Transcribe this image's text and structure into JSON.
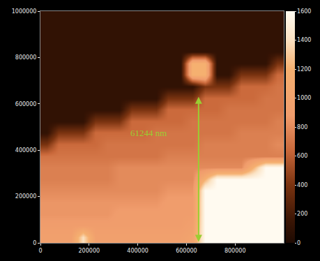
{
  "chart_data": {
    "type": "heatmap",
    "x": [
      25000,
      75000,
      125000,
      175000,
      225000,
      275000,
      325000,
      375000,
      425000,
      475000,
      525000,
      575000,
      625000,
      675000,
      725000,
      775000,
      825000,
      875000,
      925000,
      975000
    ],
    "y": [
      25000,
      75000,
      125000,
      175000,
      225000,
      275000,
      325000,
      375000,
      425000,
      475000,
      525000,
      575000,
      625000,
      675000,
      725000,
      775000,
      825000,
      875000,
      925000,
      975000
    ],
    "z": [
      [
        950,
        950,
        950,
        1400,
        950,
        950,
        950,
        950,
        950,
        950,
        950,
        950,
        1000,
        1600,
        1600,
        1600,
        1600,
        1600,
        1600,
        1600
      ],
      [
        900,
        900,
        900,
        900,
        900,
        900,
        900,
        900,
        900,
        900,
        900,
        900,
        950,
        1600,
        1600,
        1600,
        1600,
        1600,
        1600,
        1600
      ],
      [
        850,
        850,
        850,
        850,
        850,
        850,
        900,
        900,
        900,
        900,
        900,
        900,
        900,
        1600,
        1600,
        1600,
        1600,
        1600,
        1600,
        1600
      ],
      [
        850,
        850,
        850,
        850,
        850,
        850,
        850,
        850,
        850,
        850,
        900,
        900,
        900,
        1600,
        1600,
        1600,
        1600,
        1600,
        1600,
        1600
      ],
      [
        800,
        800,
        800,
        800,
        800,
        800,
        800,
        800,
        800,
        800,
        850,
        850,
        850,
        1600,
        1600,
        1600,
        1600,
        1600,
        1600,
        1600
      ],
      [
        750,
        750,
        750,
        750,
        750,
        750,
        800,
        800,
        800,
        800,
        800,
        800,
        800,
        1200,
        1600,
        1600,
        1600,
        1600,
        1600,
        1600
      ],
      [
        750,
        750,
        750,
        750,
        750,
        750,
        800,
        800,
        800,
        800,
        800,
        800,
        800,
        800,
        800,
        800,
        800,
        1200,
        1600,
        1600
      ],
      [
        700,
        700,
        700,
        700,
        700,
        700,
        700,
        700,
        700,
        700,
        750,
        750,
        750,
        750,
        750,
        750,
        750,
        750,
        750,
        750
      ],
      [
        400,
        650,
        650,
        650,
        650,
        700,
        700,
        700,
        700,
        700,
        700,
        700,
        700,
        750,
        750,
        750,
        750,
        750,
        750,
        800
      ],
      [
        100,
        400,
        400,
        400,
        650,
        650,
        650,
        650,
        650,
        700,
        700,
        700,
        700,
        700,
        700,
        700,
        750,
        750,
        750,
        750
      ],
      [
        100,
        100,
        100,
        100,
        400,
        400,
        400,
        650,
        650,
        650,
        650,
        650,
        700,
        700,
        700,
        700,
        700,
        700,
        700,
        750
      ],
      [
        100,
        100,
        100,
        100,
        100,
        100,
        100,
        400,
        400,
        400,
        650,
        650,
        650,
        650,
        650,
        700,
        700,
        700,
        700,
        700
      ],
      [
        100,
        100,
        100,
        100,
        100,
        100,
        100,
        100,
        100,
        100,
        400,
        400,
        400,
        650,
        650,
        650,
        650,
        650,
        700,
        700
      ],
      [
        100,
        100,
        100,
        100,
        100,
        100,
        100,
        100,
        100,
        100,
        100,
        100,
        100,
        400,
        400,
        400,
        650,
        650,
        650,
        700
      ],
      [
        100,
        100,
        100,
        100,
        100,
        100,
        100,
        100,
        100,
        100,
        100,
        100,
        1200,
        1200,
        100,
        100,
        400,
        400,
        400,
        650
      ],
      [
        100,
        100,
        100,
        100,
        100,
        100,
        100,
        100,
        100,
        100,
        100,
        100,
        1200,
        1200,
        100,
        100,
        100,
        100,
        100,
        400
      ],
      [
        100,
        100,
        100,
        100,
        100,
        100,
        100,
        100,
        100,
        100,
        100,
        100,
        100,
        100,
        100,
        100,
        100,
        100,
        100,
        100
      ],
      [
        100,
        100,
        100,
        100,
        100,
        100,
        100,
        100,
        100,
        100,
        100,
        100,
        100,
        100,
        100,
        100,
        100,
        100,
        100,
        100
      ],
      [
        100,
        100,
        100,
        100,
        100,
        100,
        100,
        100,
        100,
        100,
        100,
        100,
        100,
        100,
        100,
        100,
        100,
        100,
        100,
        100
      ],
      [
        100,
        100,
        100,
        100,
        100,
        100,
        100,
        100,
        100,
        100,
        100,
        100,
        100,
        100,
        100,
        100,
        100,
        100,
        100,
        100
      ]
    ],
    "xlim": [
      0,
      1000000
    ],
    "ylim": [
      0,
      1000000
    ],
    "xticks": [
      0,
      200000,
      400000,
      600000,
      800000
    ],
    "yticks": [
      0,
      200000,
      400000,
      600000,
      800000,
      1000000
    ],
    "colorbar": {
      "range": [
        0,
        1600
      ],
      "ticks": [
        0,
        200,
        400,
        600,
        800,
        1000,
        1200,
        1400,
        1600
      ]
    },
    "annotations": [
      {
        "text": "61244 nm",
        "x": 443000,
        "y": 473000,
        "color": "#9acd32"
      }
    ],
    "arrow": {
      "x": 650000,
      "y": [
        0,
        630000
      ],
      "color": "#9acd32"
    }
  }
}
